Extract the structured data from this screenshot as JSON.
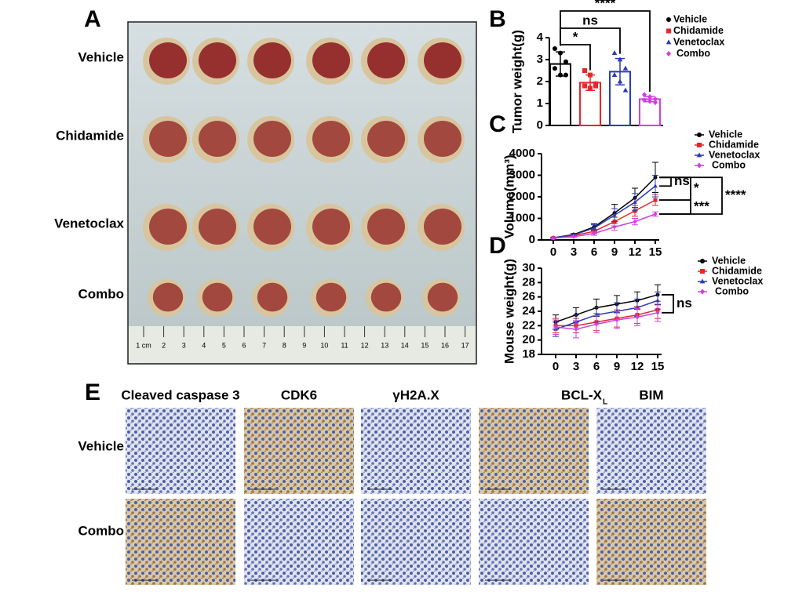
{
  "panel_labels": [
    "A",
    "B",
    "C",
    "D",
    "E"
  ],
  "photo": {
    "rows": [
      "Vehicle",
      "Chidamide",
      "Venetoclax",
      "Combo"
    ],
    "ruler": [
      "1 cm",
      "2",
      "3",
      "4",
      "5",
      "6",
      "7",
      "8",
      "9",
      "10",
      "11",
      "12",
      "13",
      "14",
      "15",
      "16",
      "17"
    ]
  },
  "ihc": {
    "columns": [
      "Cleaved caspase 3",
      "CDK6",
      "γH2A.X",
      "BCL-X",
      "BIM"
    ],
    "columns_subscript": "L",
    "rows": [
      "Vehicle",
      "Combo"
    ]
  },
  "chart_data": [
    {
      "type": "bar",
      "ylabel": "Tumor weight(g)",
      "ylim": [
        0,
        4
      ],
      "yticks": [
        0,
        1,
        2,
        3,
        4
      ],
      "series": [
        {
          "name": "Vehicle",
          "color": "#000000",
          "values": [
            2.8
          ],
          "errors": [
            0.55
          ],
          "points": [
            3.5,
            3.3,
            2.9,
            2.6,
            2.3,
            2.3
          ]
        },
        {
          "name": "Chidamide",
          "color": "#e8262a",
          "values": [
            1.95
          ],
          "errors": [
            0.35
          ],
          "points": [
            2.5,
            2.3,
            1.9,
            1.8,
            1.7,
            1.8
          ]
        },
        {
          "name": "Venetoclax",
          "color": "#2b3bb5",
          "values": [
            2.45
          ],
          "errors": [
            0.6
          ],
          "points": [
            3.3,
            3.0,
            2.6,
            2.3,
            2.0,
            1.6
          ]
        },
        {
          "name": "Combo",
          "color": "#d040e0",
          "values": [
            1.2
          ],
          "errors": [
            0.12
          ],
          "points": [
            1.4,
            1.3,
            1.2,
            1.15,
            1.1,
            1.05
          ]
        }
      ],
      "annotations": [
        "*",
        "ns",
        "****"
      ]
    },
    {
      "type": "line",
      "ylabel": "Volume(mm³)",
      "x": [
        0,
        3,
        6,
        9,
        12,
        15
      ],
      "xlim": [
        0,
        15
      ],
      "xticks": [
        0,
        3,
        6,
        9,
        12,
        15
      ],
      "ylim": [
        0,
        4000
      ],
      "yticks": [
        0,
        1000,
        2000,
        3000,
        4000
      ],
      "series": [
        {
          "name": "Vehicle",
          "color": "#000000",
          "values": [
            100,
            250,
            600,
            1250,
            1950,
            2900
          ],
          "errors": [
            20,
            50,
            150,
            400,
            450,
            700
          ]
        },
        {
          "name": "Chidamide",
          "color": "#e8262a",
          "values": [
            90,
            200,
            400,
            850,
            1350,
            1850
          ],
          "errors": [
            20,
            40,
            100,
            200,
            250,
            250
          ]
        },
        {
          "name": "Venetoclax",
          "color": "#2b3bb5",
          "values": [
            95,
            230,
            550,
            1150,
            1750,
            2500
          ],
          "errors": [
            20,
            50,
            150,
            300,
            400,
            500
          ]
        },
        {
          "name": "Combo",
          "color": "#d040e0",
          "values": [
            80,
            150,
            300,
            600,
            850,
            1200
          ],
          "errors": [
            15,
            30,
            80,
            150,
            150,
            100
          ]
        }
      ],
      "annotations": [
        "ns",
        "*",
        "***",
        "****"
      ]
    },
    {
      "type": "line",
      "ylabel": "Mouse weight(g)",
      "x": [
        0,
        3,
        6,
        9,
        12,
        15
      ],
      "xlim": [
        0,
        15
      ],
      "xticks": [
        0,
        3,
        6,
        9,
        12,
        15
      ],
      "ylim": [
        18,
        30
      ],
      "yticks": [
        18,
        20,
        22,
        24,
        26,
        28,
        30
      ],
      "series": [
        {
          "name": "Vehicle",
          "color": "#000000",
          "values": [
            22.5,
            23.5,
            24.5,
            25,
            25.5,
            26.3
          ],
          "errors": [
            1,
            1,
            1.2,
            1.2,
            1.2,
            1.4
          ]
        },
        {
          "name": "Chidamide",
          "color": "#e8262a",
          "values": [
            22,
            22,
            22.5,
            23,
            23.5,
            24.2
          ],
          "errors": [
            1,
            1,
            1.2,
            1.2,
            1.2,
            1.2
          ]
        },
        {
          "name": "Venetoclax",
          "color": "#2b3bb5",
          "values": [
            21.5,
            22.5,
            23.5,
            24,
            24.5,
            25.5
          ],
          "errors": [
            1,
            1,
            1,
            1.2,
            1.2,
            1.2
          ]
        },
        {
          "name": "Combo",
          "color": "#d040e0",
          "values": [
            21.8,
            21.5,
            22.2,
            22.8,
            23.2,
            23.8
          ],
          "errors": [
            1,
            1.2,
            1.2,
            1.2,
            1.2,
            1.2
          ]
        }
      ],
      "annotations": [
        "ns"
      ]
    }
  ]
}
